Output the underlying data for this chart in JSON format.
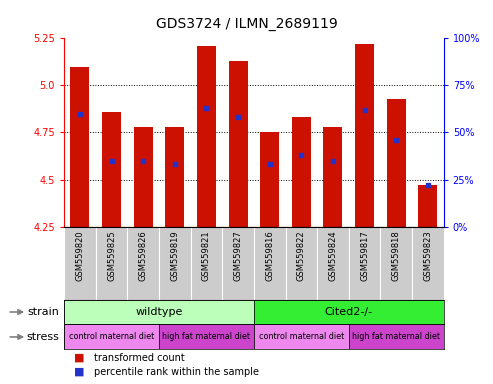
{
  "title": "GDS3724 / ILMN_2689119",
  "samples": [
    "GSM559820",
    "GSM559825",
    "GSM559826",
    "GSM559819",
    "GSM559821",
    "GSM559827",
    "GSM559816",
    "GSM559822",
    "GSM559824",
    "GSM559817",
    "GSM559818",
    "GSM559823"
  ],
  "bar_values": [
    5.1,
    4.86,
    4.78,
    4.78,
    5.21,
    5.13,
    4.75,
    4.83,
    4.78,
    5.22,
    4.93,
    4.47
  ],
  "percentile_ranks": [
    60,
    35,
    35,
    33,
    63,
    58,
    33,
    38,
    35,
    62,
    46,
    22
  ],
  "y_min": 4.25,
  "y_max": 5.25,
  "y_ticks": [
    4.25,
    4.5,
    4.75,
    5.0,
    5.25
  ],
  "right_y_ticks": [
    0,
    25,
    50,
    75,
    100
  ],
  "bar_color": "#cc1100",
  "blue_color": "#2233cc",
  "wildtype_light": "#bbffbb",
  "cited_green": "#33ee33",
  "light_pink": "#ee88ee",
  "dark_pink": "#cc44cc",
  "sample_bg_color": "#cccccc"
}
